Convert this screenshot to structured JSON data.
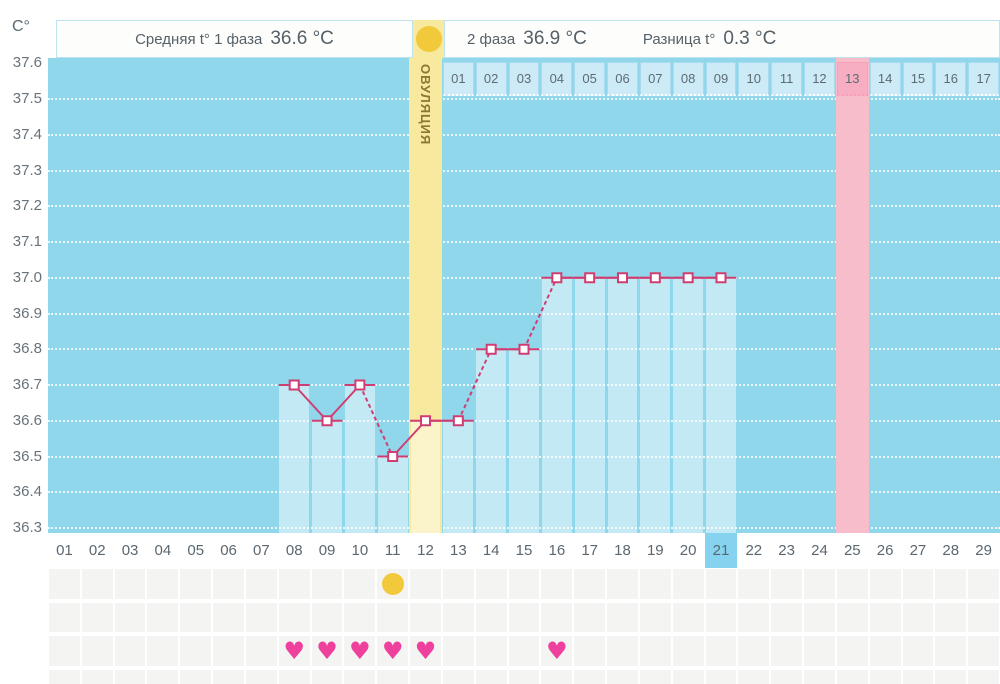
{
  "y_axis": {
    "unit": "C°"
  },
  "header": {
    "phase1_label": "Средняя t° 1 фаза",
    "phase1_value": "36.6 °C",
    "phase2_label": "2 фаза",
    "phase2_value": "36.9 °C",
    "diff_label": "Разница t°",
    "diff_value": "0.3 °C"
  },
  "ovulation_band": {
    "label": "ОВУЛЯЦИЯ",
    "day": 12
  },
  "pink_band": {
    "day": 25
  },
  "x_axis": {
    "days": [
      "01",
      "02",
      "03",
      "04",
      "05",
      "06",
      "07",
      "08",
      "09",
      "10",
      "11",
      "12",
      "13",
      "14",
      "15",
      "16",
      "17",
      "18",
      "19",
      "20",
      "21",
      "22",
      "23",
      "24",
      "25",
      "26",
      "27",
      "28",
      "29"
    ],
    "highlighted_day": "21"
  },
  "phase2_axis": {
    "days": [
      "01",
      "02",
      "03",
      "04",
      "05",
      "06",
      "07",
      "08",
      "09",
      "10",
      "11",
      "12",
      "13",
      "14",
      "15",
      "16",
      "17"
    ],
    "pink_day": "13"
  },
  "chart_data": {
    "type": "line",
    "ylabel": "C°",
    "ylim": [
      36.3,
      37.6
    ],
    "ytick_step": 0.1,
    "yticks": [
      "37.6",
      "37.5",
      "37.4",
      "37.3",
      "37.2",
      "37.1",
      "37.0",
      "36.9",
      "36.8",
      "36.7",
      "36.6",
      "36.5",
      "36.4",
      "36.3"
    ],
    "x_days_total": 29,
    "grid": "horizontal-dotted",
    "series": [
      {
        "name": "basal-temperature",
        "x": [
          8,
          9,
          10,
          11,
          12,
          13,
          14,
          15,
          16,
          17,
          18,
          19,
          20,
          21
        ],
        "values": [
          36.7,
          36.6,
          36.7,
          36.5,
          36.6,
          36.6,
          36.8,
          36.8,
          37.0,
          37.0,
          37.0,
          37.0,
          37.0,
          37.0
        ]
      }
    ],
    "annotations": {
      "ovulation_band_day": 12,
      "pink_column_day": 25,
      "highlighted_axis_day": 21,
      "phase2_day_numbers_start_day": 13
    }
  },
  "markers": {
    "dot_row": {
      "icon": "yellow-dot",
      "days": [
        11
      ]
    },
    "heart_row": {
      "icon": "heart",
      "glyph": "♥",
      "days": [
        8,
        9,
        10,
        11,
        12,
        16
      ]
    }
  },
  "colors": {
    "chart_bg": "#90d7eb",
    "bar_fill": "rgba(255,255,255,0.45)",
    "line": "#cf3e72",
    "marker_fill": "#ffffff",
    "ovulation_band": "#f7e99e",
    "ovulation_text": "#8a7733",
    "pink_band": "#f8bdca",
    "pink_cell": "#f7aec3",
    "phase2_cell": "#cdeaf7",
    "day_highlight": "#85d3ee",
    "dot": "#f1c93a",
    "heart": "#ee409d",
    "note_cell": "#f4f4f2",
    "text": "#5b6770"
  }
}
